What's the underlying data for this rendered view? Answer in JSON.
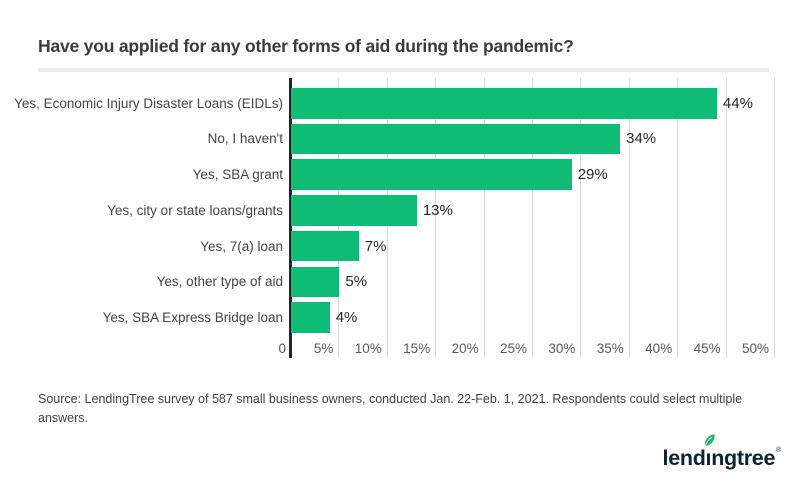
{
  "title": "Have you applied for any other forms of aid during the pandemic?",
  "chart_data": {
    "type": "bar",
    "orientation": "horizontal",
    "title": "Have you applied for any other forms of aid during the pandemic?",
    "categories": [
      "Yes, Economic Injury Disaster Loans (EIDLs)",
      "No, I haven't",
      "Yes, SBA grant",
      "Yes, city or state loans/grants",
      "Yes, 7(a) loan",
      "Yes, other type of aid",
      "Yes, SBA Express Bridge loan"
    ],
    "values": [
      44,
      34,
      29,
      13,
      7,
      5,
      4
    ],
    "value_labels": [
      "44%",
      "34%",
      "29%",
      "13%",
      "7%",
      "5%",
      "4%"
    ],
    "x_ticks": [
      "0",
      "5%",
      "10%",
      "15%",
      "20%",
      "25%",
      "30%",
      "35%",
      "40%",
      "45%",
      "50%"
    ],
    "xlim": [
      0,
      50
    ],
    "tick_step": 5,
    "grid": true,
    "legend": "none",
    "xlabel": "",
    "ylabel": ""
  },
  "source_note": "Source: LendingTree survey of 587 small business owners, conducted Jan. 22-Feb. 1, 2021. Respondents could select multiple answers.",
  "logo": {
    "name": "lendingtree",
    "text_before_leaf": "lend",
    "leaf_letter": "ı",
    "text_after_leaf": "ngtree",
    "registered": "®"
  },
  "colors": {
    "bar_green": "#0ebc75",
    "leaf_green": "#1fbb6c",
    "logo_navy": "#0d2232",
    "title_text": "#383c41",
    "category_text": "#40454b",
    "value_text": "#25282c",
    "tick_text": "#55585d",
    "gridline": "#d9dadc",
    "axis_line": "#202328",
    "divider": "#e9eaeb",
    "background": "#ffffff"
  }
}
